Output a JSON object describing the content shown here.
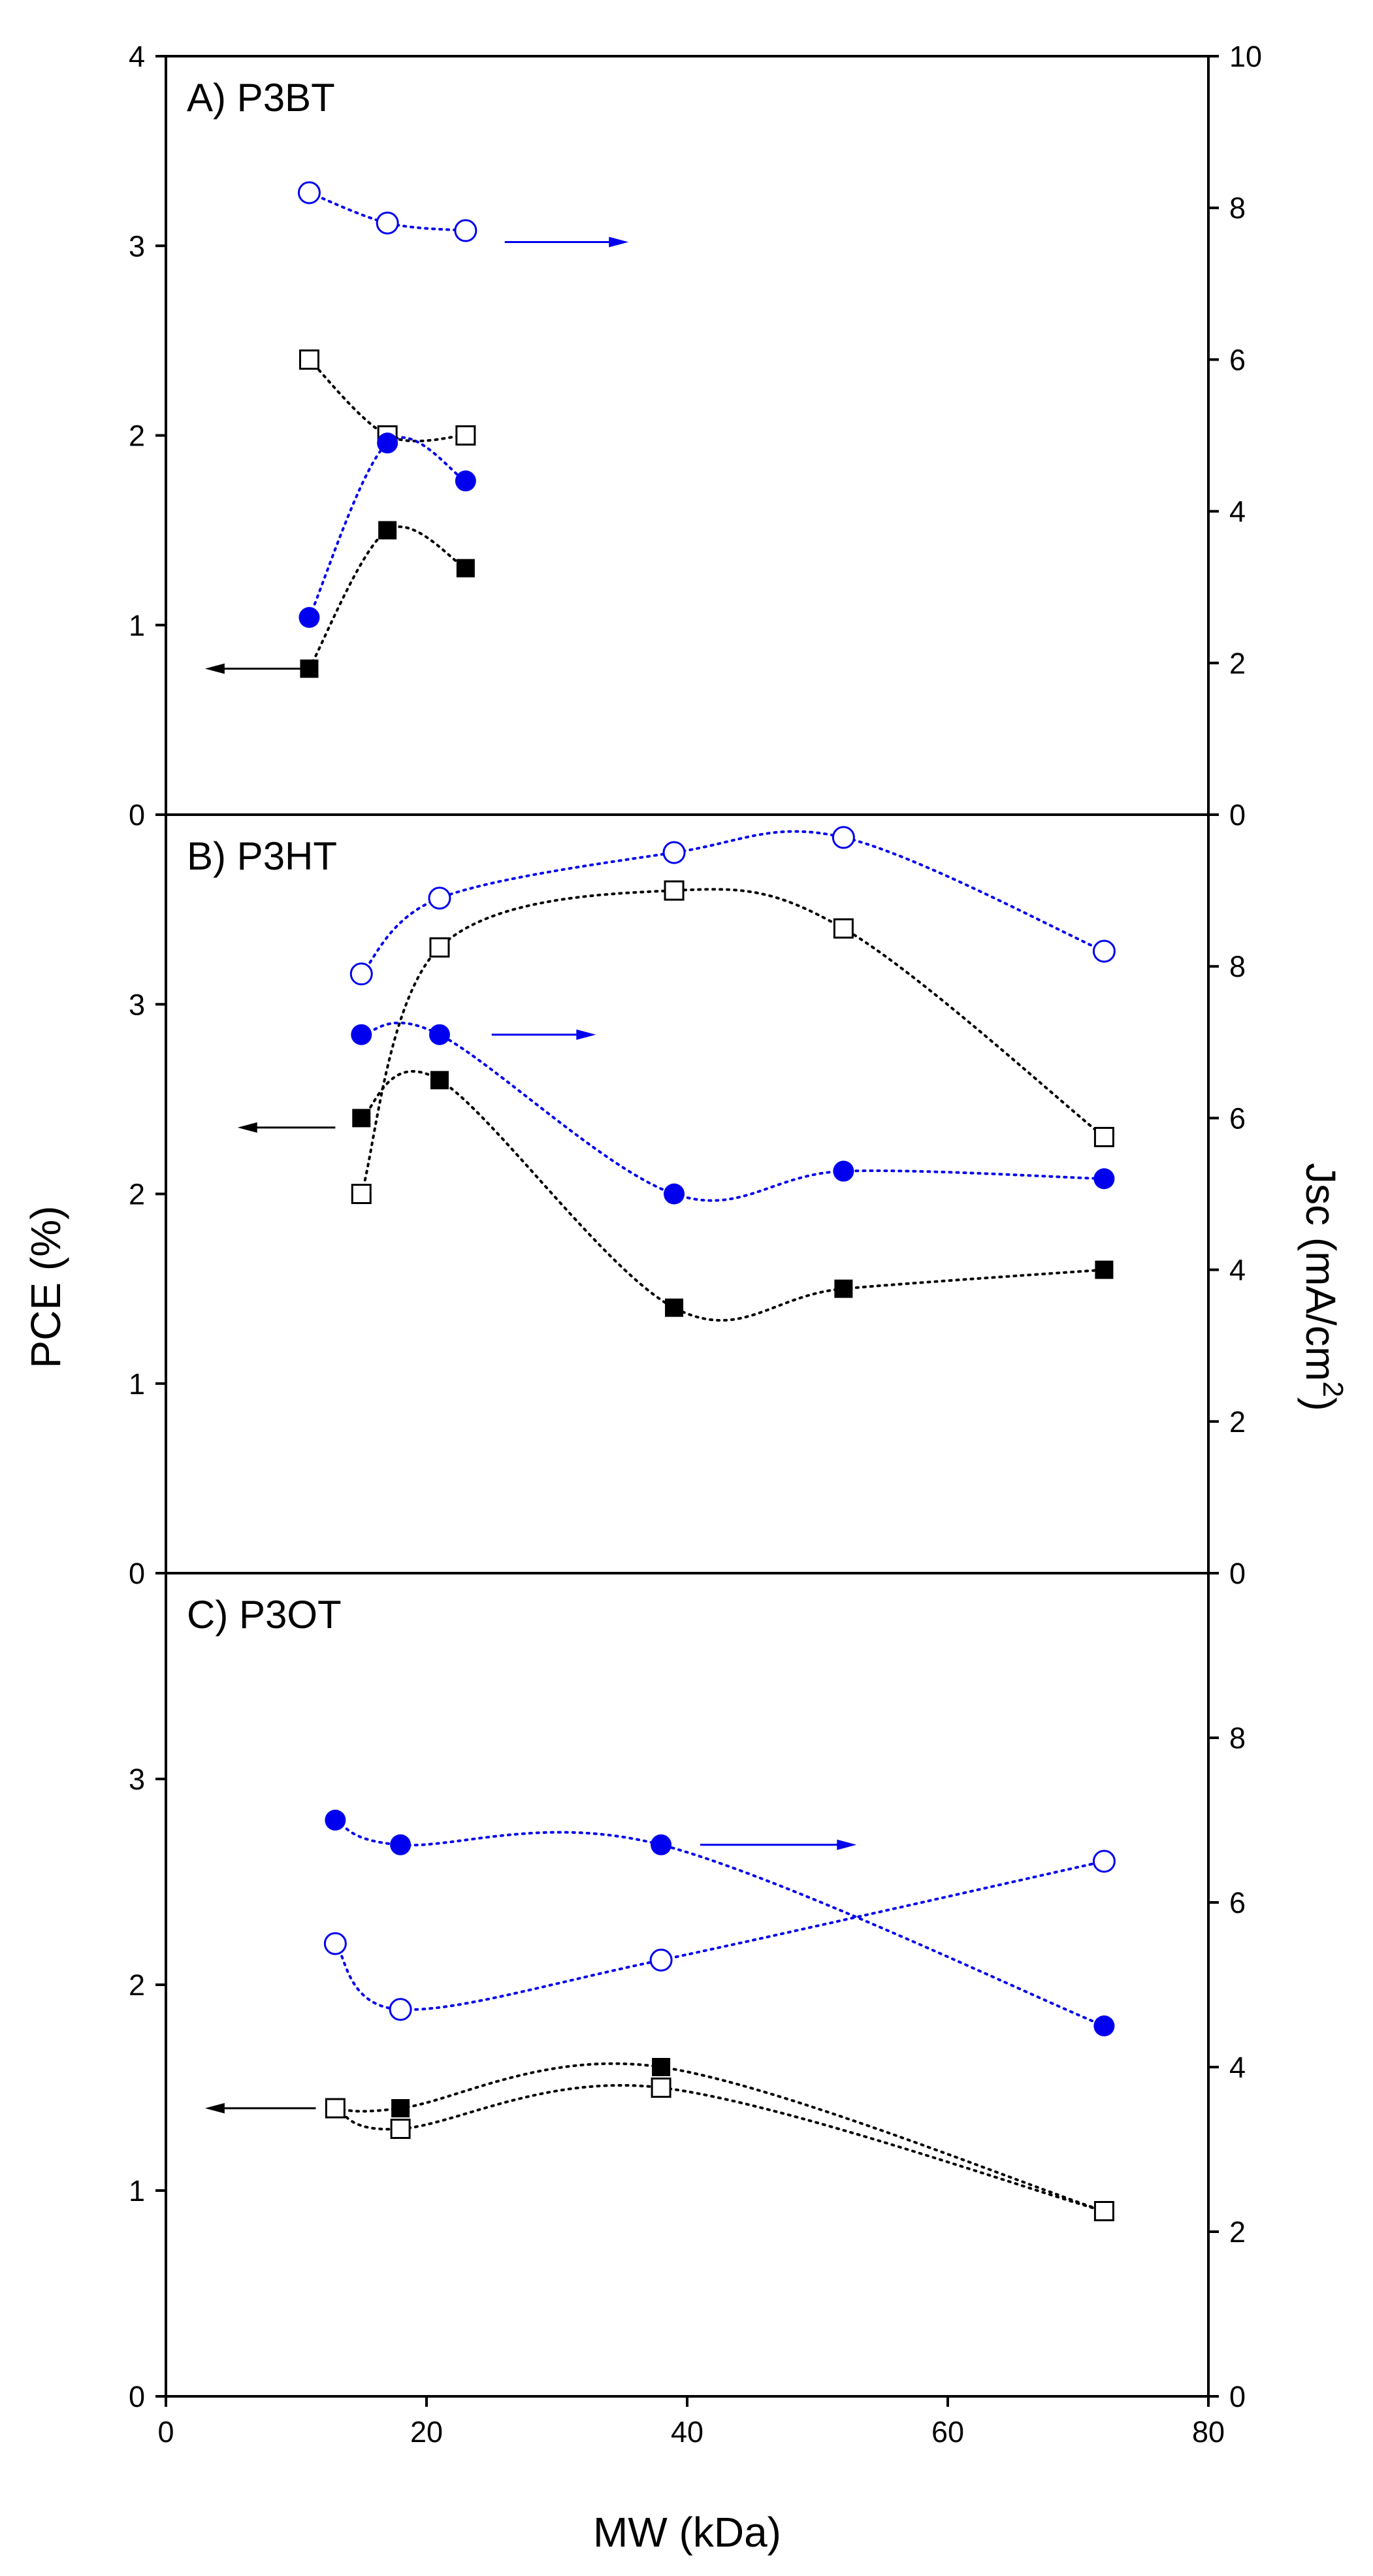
{
  "chart_data": [
    {
      "type": "scatter",
      "panel_label": "A) P3BT",
      "x_axis": {
        "lim": [
          0,
          80
        ],
        "ticks": [
          0,
          20,
          40,
          60,
          80
        ]
      },
      "y_left": {
        "lim": [
          0,
          4
        ],
        "ticks": [
          0,
          1,
          2,
          3,
          4
        ]
      },
      "y_right": {
        "lim": [
          0,
          10
        ],
        "ticks": [
          0,
          2,
          4,
          6,
          8,
          10
        ]
      },
      "series": [
        {
          "marker": "filled-square",
          "color": "#000000",
          "axis": "left",
          "x": [
            11,
            17,
            23
          ],
          "y": [
            0.77,
            1.5,
            1.3
          ]
        },
        {
          "marker": "open-square",
          "color": "#000000",
          "axis": "left",
          "x": [
            11,
            17,
            23
          ],
          "y": [
            2.4,
            2.0,
            2.0
          ]
        },
        {
          "marker": "filled-circle",
          "color": "#0000ee",
          "axis": "right",
          "x": [
            11,
            17,
            23
          ],
          "y": [
            2.6,
            4.9,
            4.4
          ]
        },
        {
          "marker": "open-circle",
          "color": "#0000ee",
          "axis": "right",
          "x": [
            11,
            17,
            23
          ],
          "y": [
            8.2,
            7.8,
            7.7
          ]
        }
      ],
      "arrows": [
        {
          "color": "#000000",
          "direction": "left",
          "axis": "left",
          "x_from": 11,
          "x_to": 3,
          "y": 0.77
        },
        {
          "color": "#0000ee",
          "direction": "right",
          "axis": "right",
          "x_from": 26,
          "x_to": 35.5,
          "y": 7.55
        }
      ]
    },
    {
      "type": "scatter",
      "panel_label": "B) P3HT",
      "x_axis": {
        "lim": [
          0,
          80
        ],
        "ticks": [
          0,
          20,
          40,
          60,
          80
        ]
      },
      "y_left": {
        "lim": [
          0,
          4
        ],
        "ticks": [
          0,
          1,
          2,
          3
        ]
      },
      "y_right": {
        "lim": [
          0,
          10
        ],
        "ticks": [
          0,
          2,
          4,
          6,
          8
        ]
      },
      "series": [
        {
          "marker": "filled-square",
          "color": "#000000",
          "axis": "left",
          "x": [
            15,
            21,
            39,
            52,
            72
          ],
          "y": [
            2.4,
            2.6,
            1.4,
            1.5,
            1.6
          ]
        },
        {
          "marker": "open-square",
          "color": "#000000",
          "axis": "left",
          "x": [
            15,
            21,
            39,
            52,
            72
          ],
          "y": [
            2.0,
            3.3,
            3.6,
            3.4,
            2.3
          ]
        },
        {
          "marker": "filled-circle",
          "color": "#0000ee",
          "axis": "right",
          "x": [
            15,
            21,
            39,
            52,
            72
          ],
          "y": [
            7.1,
            7.1,
            5.0,
            5.3,
            5.2
          ]
        },
        {
          "marker": "open-circle",
          "color": "#0000ee",
          "axis": "right",
          "x": [
            15,
            21,
            39,
            52,
            72
          ],
          "y": [
            7.9,
            8.9,
            9.5,
            9.7,
            8.2
          ]
        }
      ],
      "arrows": [
        {
          "color": "#000000",
          "direction": "left",
          "axis": "left",
          "x_from": 13,
          "x_to": 5.5,
          "y": 2.35
        },
        {
          "color": "#0000ee",
          "direction": "right",
          "axis": "right",
          "x_from": 25,
          "x_to": 33,
          "y": 7.1
        }
      ]
    },
    {
      "type": "scatter",
      "panel_label": "C) P3OT",
      "x_axis": {
        "lim": [
          0,
          80
        ],
        "ticks": [
          0,
          20,
          40,
          60,
          80
        ],
        "label": "MW (kDa)"
      },
      "y_left": {
        "lim": [
          0,
          4
        ],
        "ticks": [
          0,
          1,
          2,
          3
        ]
      },
      "y_right": {
        "lim": [
          0,
          10
        ],
        "ticks": [
          0,
          2,
          4,
          6,
          8
        ]
      },
      "series": [
        {
          "marker": "filled-square",
          "color": "#000000",
          "axis": "left",
          "x": [
            13,
            18,
            38,
            72
          ],
          "y": [
            1.4,
            1.4,
            1.6,
            0.9
          ]
        },
        {
          "marker": "open-square",
          "color": "#000000",
          "axis": "left",
          "x": [
            13,
            18,
            38,
            72
          ],
          "y": [
            1.4,
            1.3,
            1.5,
            0.9
          ]
        },
        {
          "marker": "filled-circle",
          "color": "#0000ee",
          "axis": "right",
          "x": [
            13,
            18,
            38,
            72
          ],
          "y": [
            7.0,
            6.7,
            6.7,
            4.5
          ]
        },
        {
          "marker": "open-circle",
          "color": "#0000ee",
          "axis": "right",
          "x": [
            13,
            18,
            38,
            72
          ],
          "y": [
            5.5,
            4.7,
            5.3,
            6.5
          ]
        }
      ],
      "arrows": [
        {
          "color": "#000000",
          "direction": "left",
          "axis": "left",
          "x_from": 11.5,
          "x_to": 3,
          "y": 1.4
        },
        {
          "color": "#0000ee",
          "direction": "right",
          "axis": "right",
          "x_from": 41,
          "x_to": 53,
          "y": 6.7
        }
      ]
    }
  ],
  "axis_titles": {
    "left": "PCE (%)",
    "right_main": "Jsc (mA/cm",
    "right_sup": "2",
    "right_close": ")",
    "bottom": "MW (kDa)"
  }
}
